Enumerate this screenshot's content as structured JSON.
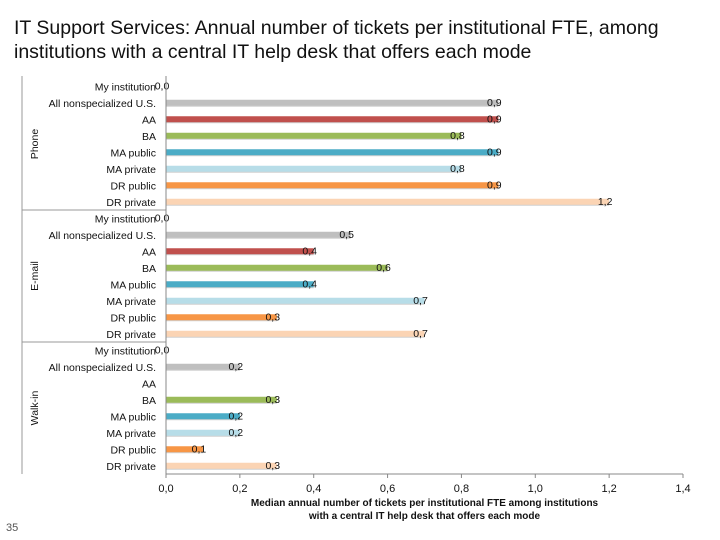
{
  "slide": {
    "title": "IT Support Services: Annual number of tickets per institutional FTE, among institutions with a central IT help desk that offers each mode",
    "number": "35"
  },
  "colors": {
    "My institution": "#1f4e79",
    "All nonspecialized U.S.": "#bfbfbf",
    "AA": "#c0504d",
    "BA": "#9bbb59",
    "MA public": "#4bacc6",
    "MA private": "#b7dde8",
    "DR public": "#f79646",
    "DR private": "#fbd4b4"
  },
  "chart_data": {
    "type": "bar",
    "orientation": "horizontal",
    "xlabel": "Median annual number of tickets per institutional FTE among institutions with a central IT help desk that offers each mode",
    "xlim": [
      0,
      1.4
    ],
    "xticks": [
      "0,0",
      "0,2",
      "0,4",
      "0,6",
      "0,8",
      "1,0",
      "1,2",
      "1,4"
    ],
    "xtick_values": [
      0,
      0.2,
      0.4,
      0.6,
      0.8,
      1.0,
      1.2,
      1.4
    ],
    "grid": false,
    "groups": [
      {
        "name": "Phone",
        "bars": [
          {
            "label": "My institution",
            "value": 0.0,
            "display": "0,0"
          },
          {
            "label": "All nonspecialized U.S.",
            "value": 0.9,
            "display": "0,9"
          },
          {
            "label": "AA",
            "value": 0.9,
            "display": "0,9"
          },
          {
            "label": "BA",
            "value": 0.8,
            "display": "0,8"
          },
          {
            "label": "MA public",
            "value": 0.9,
            "display": "0,9"
          },
          {
            "label": "MA private",
            "value": 0.8,
            "display": "0,8"
          },
          {
            "label": "DR public",
            "value": 0.9,
            "display": "0,9"
          },
          {
            "label": "DR private",
            "value": 1.2,
            "display": "1,2"
          }
        ]
      },
      {
        "name": "E-mail",
        "bars": [
          {
            "label": "My institution",
            "value": 0.0,
            "display": "0,0"
          },
          {
            "label": "All nonspecialized U.S.",
            "value": 0.5,
            "display": "0,5"
          },
          {
            "label": "AA",
            "value": 0.4,
            "display": "0,4"
          },
          {
            "label": "BA",
            "value": 0.6,
            "display": "0,6"
          },
          {
            "label": "MA public",
            "value": 0.4,
            "display": "0,4"
          },
          {
            "label": "MA private",
            "value": 0.7,
            "display": "0,7"
          },
          {
            "label": "DR public",
            "value": 0.3,
            "display": "0,3"
          },
          {
            "label": "DR private",
            "value": 0.7,
            "display": "0,7"
          }
        ]
      },
      {
        "name": "Walk-in",
        "bars": [
          {
            "label": "My institution",
            "value": 0.0,
            "display": "0,0"
          },
          {
            "label": "All nonspecialized U.S.",
            "value": 0.2,
            "display": "0,2"
          },
          {
            "label": "AA",
            "value": null,
            "display": ""
          },
          {
            "label": "BA",
            "value": 0.3,
            "display": "0,3"
          },
          {
            "label": "MA public",
            "value": 0.2,
            "display": "0,2"
          },
          {
            "label": "MA private",
            "value": 0.2,
            "display": "0,2"
          },
          {
            "label": "DR public",
            "value": 0.1,
            "display": "0,1"
          },
          {
            "label": "DR private",
            "value": 0.3,
            "display": "0,3"
          }
        ]
      }
    ]
  }
}
